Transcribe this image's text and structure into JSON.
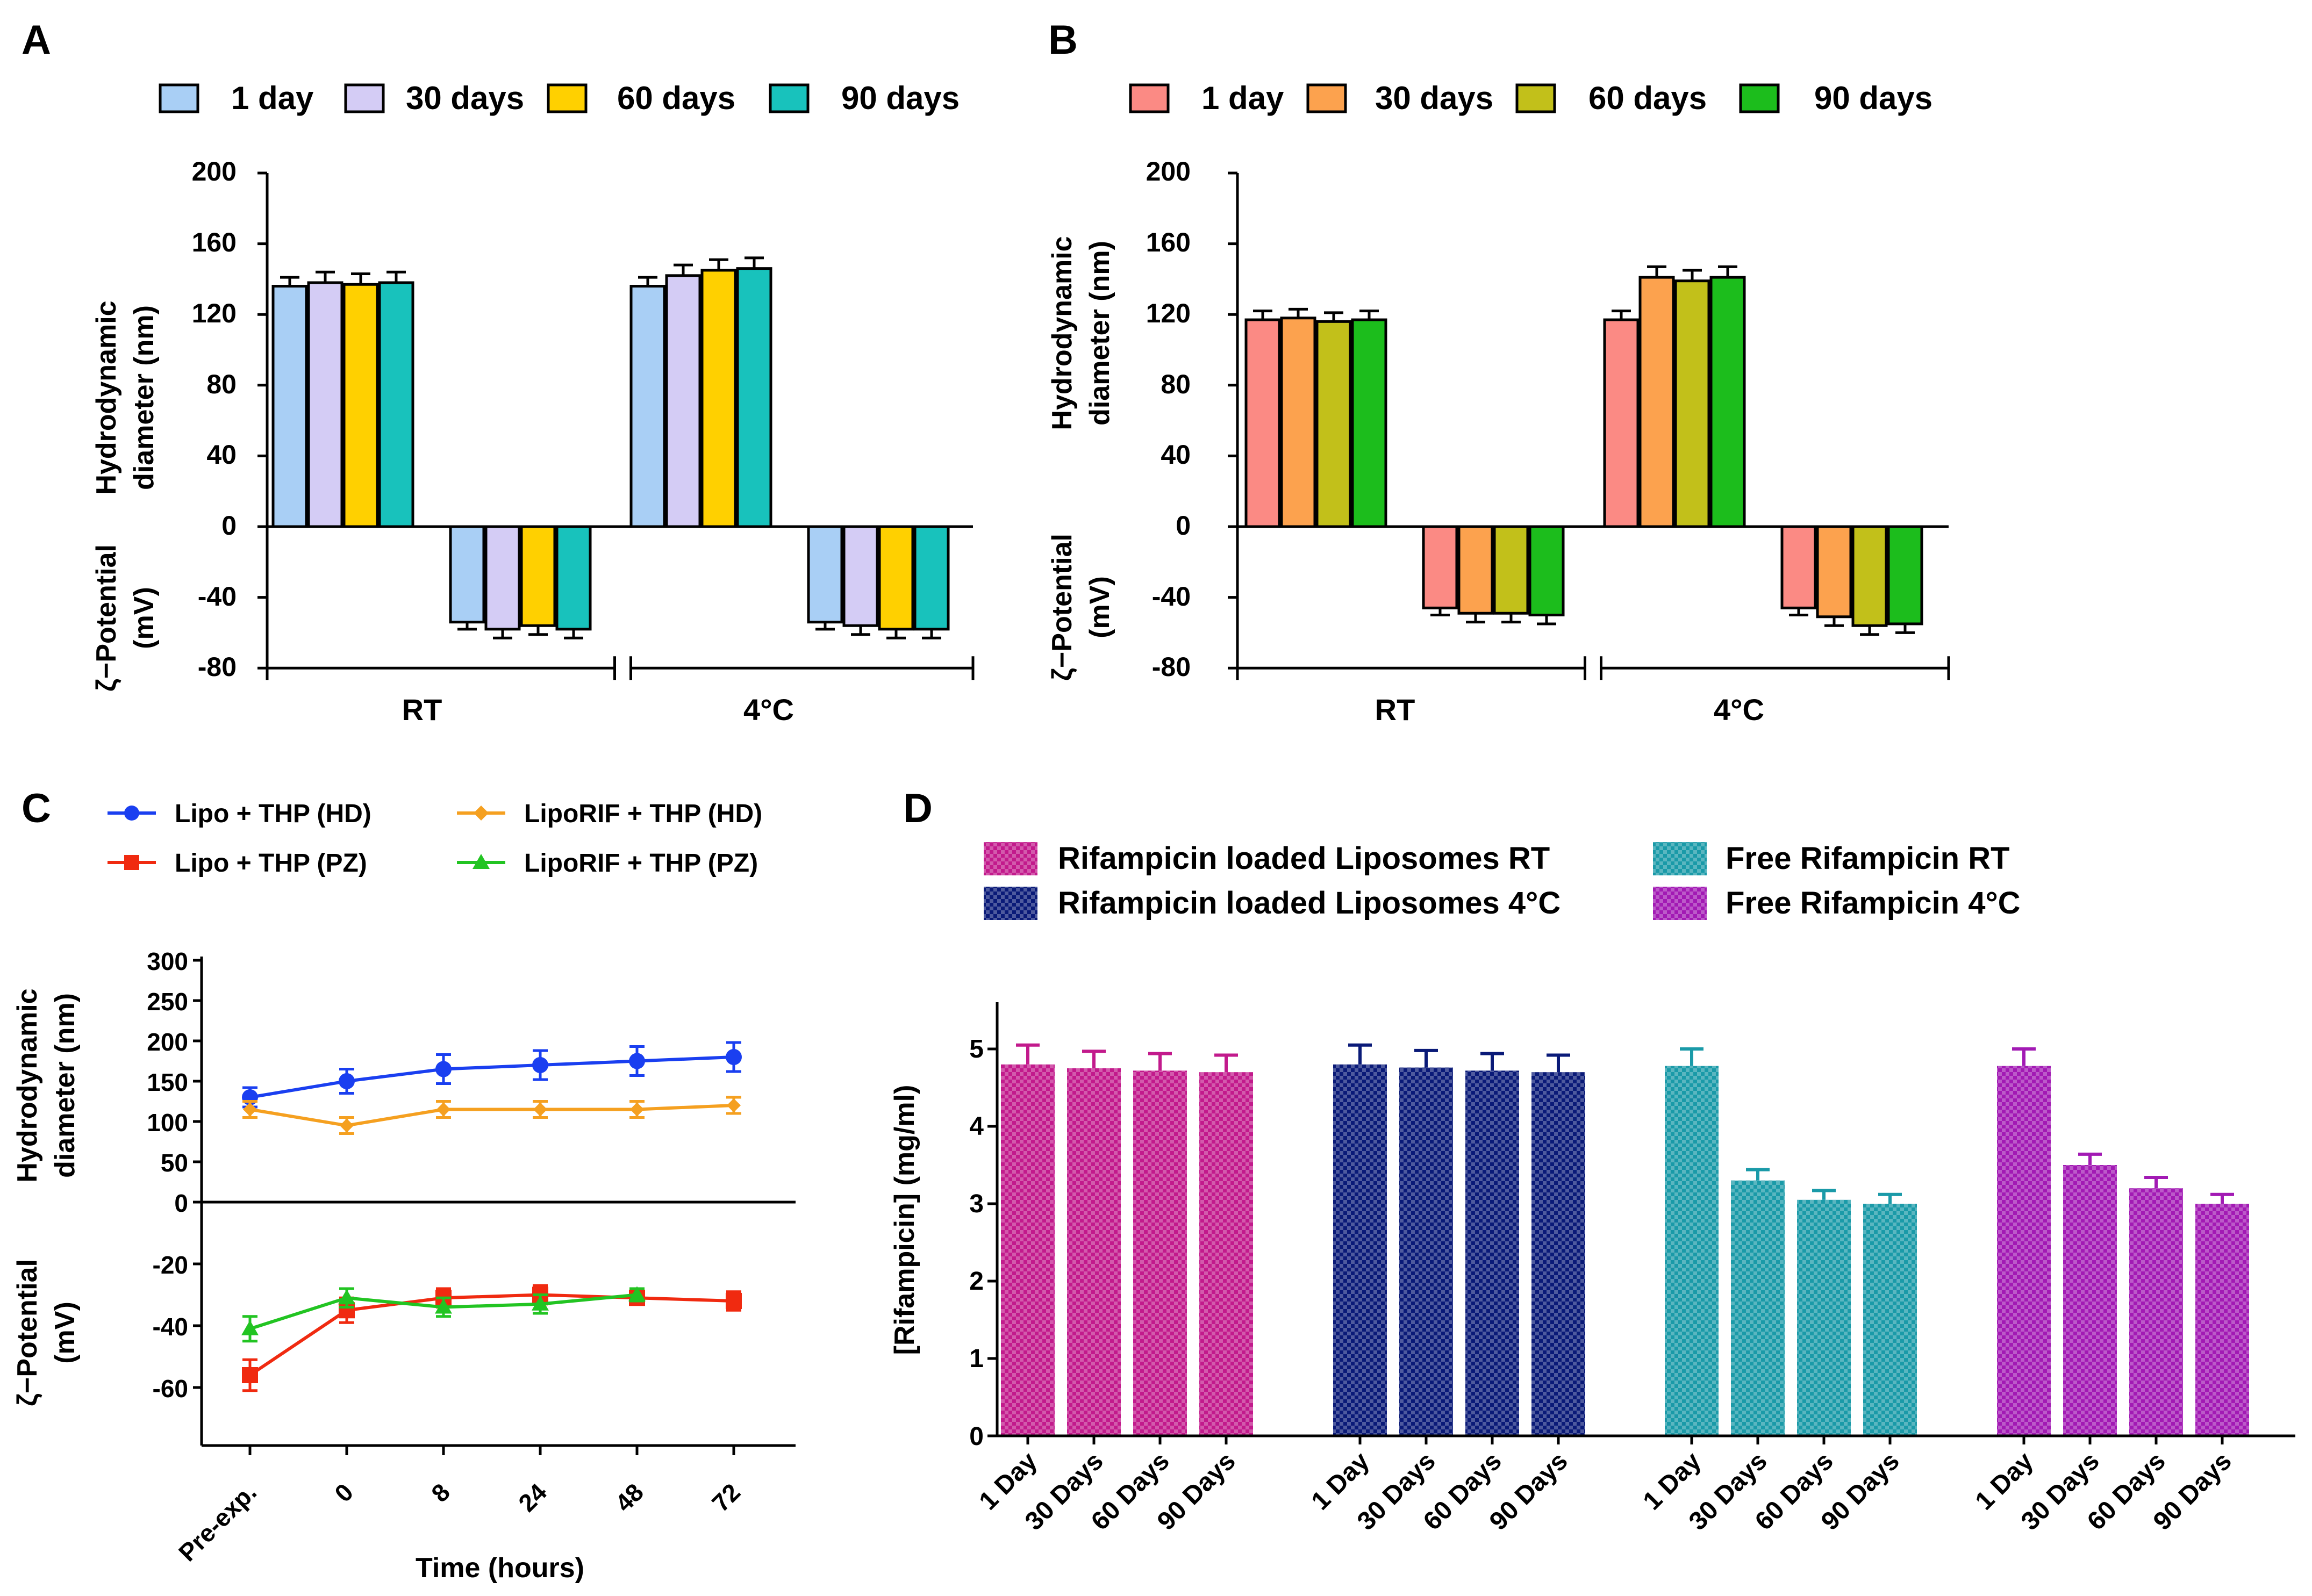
{
  "panels": {
    "A": {
      "letter": "A",
      "chart_data": {
        "type": "bar",
        "legend": [
          "1 day",
          "30 days",
          "60 days",
          "90 days"
        ],
        "colors": [
          "#a9cff5",
          "#d4ccf5",
          "#ffd000",
          "#18c2bc"
        ],
        "groups": [
          "RT",
          "4°C"
        ],
        "hydrodynamic_diameter_nm": {
          "RT": [
            136,
            138,
            137,
            138
          ],
          "4°C": [
            136,
            142,
            145,
            146
          ]
        },
        "hd_errors": {
          "RT": [
            5,
            6,
            6,
            6
          ],
          "4°C": [
            5,
            6,
            6,
            6
          ]
        },
        "zeta_potential_mV": {
          "RT": [
            -54,
            -58,
            -56,
            -58
          ],
          "4°C": [
            -54,
            -56,
            -58,
            -58
          ]
        },
        "zeta_errors": {
          "RT": [
            4,
            5,
            5,
            5
          ],
          "4°C": [
            4,
            5,
            5,
            5
          ]
        },
        "yticks": [
          "200",
          "160",
          "120",
          "80",
          "40",
          "0",
          "-40",
          "-80"
        ],
        "ylim": [
          -80,
          200
        ],
        "ylabel_top_line1": "Hydrodynamic",
        "ylabel_top_line2": "diameter (nm)",
        "ylabel_bottom_line1": "ζ−Potential",
        "ylabel_bottom_line2": "(mV)"
      }
    },
    "B": {
      "letter": "B",
      "chart_data": {
        "type": "bar",
        "legend": [
          "1 day",
          "30 days",
          "60 days",
          "90 days"
        ],
        "colors": [
          "#fb8a84",
          "#fca24e",
          "#c2c01a",
          "#1cbd1c"
        ],
        "groups": [
          "RT",
          "4°C"
        ],
        "hydrodynamic_diameter_nm": {
          "RT": [
            117,
            118,
            116,
            117
          ],
          "4°C": [
            117,
            141,
            139,
            141
          ]
        },
        "hd_errors": {
          "RT": [
            5,
            5,
            5,
            5
          ],
          "4°C": [
            5,
            6,
            6,
            6
          ]
        },
        "zeta_potential_mV": {
          "RT": [
            -46,
            -49,
            -49,
            -50
          ],
          "4°C": [
            -46,
            -51,
            -56,
            -55
          ]
        },
        "zeta_errors": {
          "RT": [
            4,
            5,
            5,
            5
          ],
          "4°C": [
            4,
            5,
            5,
            5
          ]
        },
        "yticks": [
          "200",
          "160",
          "120",
          "80",
          "40",
          "0",
          "-40",
          "-80"
        ],
        "ylim": [
          -80,
          200
        ],
        "ylabel_top_line1": "Hydrodynamic",
        "ylabel_top_line2": "diameter (nm)",
        "ylabel_bottom_line1": "ζ−Potential",
        "ylabel_bottom_line2": "(mV)"
      }
    },
    "C": {
      "letter": "C",
      "chart_data": {
        "type": "line",
        "x": [
          "Pre-exp.",
          "0",
          "8",
          "24",
          "48",
          "72"
        ],
        "xlabel": "Time (hours)",
        "series": [
          {
            "name": "Lipo + THP (HD)",
            "color": "#1a3ff0",
            "marker": "circle",
            "values": [
              130,
              150,
              165,
              170,
              175,
              180
            ],
            "errors": [
              12,
              15,
              18,
              18,
              18,
              18
            ]
          },
          {
            "name": "LipoRIF + THP (HD)",
            "color": "#f5a020",
            "marker": "diamond",
            "values": [
              115,
              95,
              115,
              115,
              115,
              120
            ],
            "errors": [
              10,
              10,
              10,
              10,
              10,
              10
            ]
          },
          {
            "name": "Lipo + THP (PZ)",
            "color": "#f02a10",
            "marker": "square",
            "values": [
              -56,
              -35,
              -31,
              -30,
              -31,
              -32
            ],
            "errors": [
              5,
              4,
              3,
              3,
              2,
              3
            ]
          },
          {
            "name": "LipoRIF + THP (PZ)",
            "color": "#22c422",
            "marker": "triangle",
            "values": [
              -41,
              -31,
              -34,
              -33,
              -30,
              null
            ],
            "errors": [
              4,
              3,
              3,
              3,
              2,
              null
            ]
          }
        ],
        "yticks_top": [
          "300",
          "250",
          "200",
          "150",
          "100",
          "50",
          "0"
        ],
        "yticks_bottom": [
          "-20",
          "-40",
          "-60"
        ],
        "ylabel_top_line1": "Hydrodynamic",
        "ylabel_top_line2": "diameter (nm)",
        "ylabel_bottom_line1": "ζ−Potential",
        "ylabel_bottom_line2": "(mV)"
      }
    },
    "D": {
      "letter": "D",
      "chart_data": {
        "type": "bar",
        "ylabel": "[Rifampicin] (mg/ml)",
        "ylim": [
          0,
          5.5
        ],
        "yticks": [
          "0",
          "1",
          "2",
          "3",
          "4",
          "5"
        ],
        "categories": [
          "1 Day",
          "30 Days",
          "60 Days",
          "90 Days"
        ],
        "series": [
          {
            "name": "Rifampicin loaded Liposomes RT",
            "color": "#c21a8c",
            "values": [
              4.8,
              4.75,
              4.72,
              4.7
            ],
            "errors": [
              0.25,
              0.22,
              0.22,
              0.22
            ]
          },
          {
            "name": "Rifampicin loaded Liposomes 4°C",
            "color": "#0a1a78",
            "values": [
              4.8,
              4.76,
              4.72,
              4.7
            ],
            "errors": [
              0.25,
              0.22,
              0.22,
              0.22
            ]
          },
          {
            "name": "Free Rifampicin  RT",
            "color": "#1a9aa8",
            "values": [
              4.78,
              3.3,
              3.05,
              3.0
            ],
            "errors": [
              0.22,
              0.14,
              0.12,
              0.12
            ]
          },
          {
            "name": "Free Rifampicin 4°C",
            "color": "#a21ab4",
            "values": [
              4.78,
              3.5,
              3.2,
              3.0
            ],
            "errors": [
              0.22,
              0.14,
              0.14,
              0.12
            ]
          }
        ]
      }
    }
  }
}
